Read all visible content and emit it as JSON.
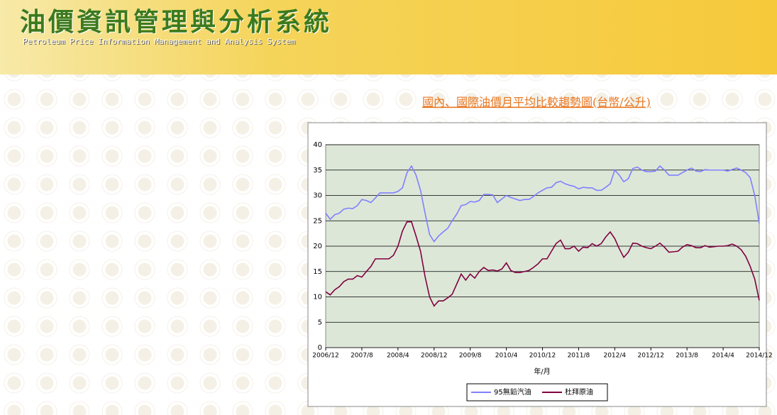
{
  "header": {
    "title": "油價資訊管理與分析系統",
    "subtitle": "Petroleum Price Information Management and Analysis System"
  },
  "chart_data": {
    "type": "line",
    "title": "國內、國際油價月平均比較趨勢圖(台幣/公升)",
    "xlabel": "年/月",
    "categories": [
      "2006/12",
      null,
      null,
      null,
      null,
      null,
      null,
      null,
      "2007/8",
      null,
      null,
      null,
      null,
      null,
      null,
      null,
      "2008/4",
      null,
      null,
      null,
      null,
      null,
      null,
      null,
      "2008/12",
      null,
      null,
      null,
      null,
      null,
      null,
      null,
      "2009/8",
      null,
      null,
      null,
      null,
      null,
      null,
      null,
      "2010/4",
      null,
      null,
      null,
      null,
      null,
      null,
      null,
      "2010/12",
      null,
      null,
      null,
      null,
      null,
      null,
      null,
      "2011/8",
      null,
      null,
      null,
      null,
      null,
      null,
      null,
      "2012/4",
      null,
      null,
      null,
      null,
      null,
      null,
      null,
      "2012/12",
      null,
      null,
      null,
      null,
      null,
      null,
      null,
      "2013/8",
      null,
      null,
      null,
      null,
      null,
      null,
      null,
      "2014/4",
      null,
      null,
      null,
      null,
      null,
      null,
      null,
      "2014/12"
    ],
    "series": [
      {
        "name": "95無鉛汽油",
        "color": "#8080ff",
        "values": [
          26.5,
          25.3,
          26.2,
          26.5,
          27.3,
          27.5,
          27.4,
          28,
          29.2,
          29,
          28.6,
          29.5,
          30.5,
          30.5,
          30.5,
          30.5,
          30.8,
          31.5,
          34.5,
          35.8,
          34,
          31,
          26.5,
          22.3,
          20.9,
          22,
          22.8,
          23.5,
          25,
          26.3,
          28,
          28.2,
          28.8,
          28.7,
          29,
          30.2,
          30.2,
          30.1,
          28.6,
          29.3,
          30,
          29.6,
          29.3,
          29,
          29.2,
          29.2,
          29.8,
          30.5,
          31,
          31.5,
          31.6,
          32.5,
          32.8,
          32.3,
          32,
          31.8,
          31.3,
          31.6,
          31.5,
          31.5,
          31,
          31,
          31.6,
          32.3,
          35,
          34,
          32.7,
          33.3,
          35.3,
          35.6,
          35,
          34.7,
          34.7,
          34.8,
          35.8,
          35,
          34,
          34,
          34,
          34.5,
          35,
          35.4,
          34.8,
          34.7,
          35.1,
          35,
          35,
          35,
          35,
          34.8,
          35.1,
          35.4,
          35,
          34.5,
          33.5,
          30,
          24.5
        ]
      },
      {
        "name": "杜拜原油",
        "color": "#800040",
        "values": [
          11,
          10.4,
          11.4,
          12,
          13,
          13.5,
          13.5,
          14.2,
          13.9,
          15,
          16,
          17.5,
          17.5,
          17.5,
          17.5,
          18.2,
          20,
          23,
          24.8,
          24.8,
          22,
          19,
          14,
          10,
          8.2,
          9.2,
          9.2,
          9.8,
          10.5,
          12.5,
          14.5,
          13.3,
          14.5,
          13.7,
          15,
          15.8,
          15.2,
          15.3,
          15.1,
          15.5,
          16.7,
          15.2,
          14.8,
          14.8,
          15,
          15.2,
          15.8,
          16.5,
          17.5,
          17.5,
          19,
          20.5,
          21.2,
          19.5,
          19.5,
          20,
          19,
          19.8,
          19.7,
          20.5,
          20,
          20.5,
          21.8,
          22.8,
          21.5,
          19.5,
          17.8,
          18.8,
          20.6,
          20.5,
          20,
          19.7,
          19.5,
          20,
          20.6,
          19.8,
          18.8,
          18.9,
          19,
          19.8,
          20.3,
          20.1,
          19.7,
          19.7,
          20.1,
          19.8,
          19.9,
          20,
          20,
          20.1,
          20.4,
          20,
          19.3,
          18,
          16,
          13.5,
          9.3
        ]
      }
    ],
    "ylim": [
      0,
      40
    ],
    "yticks": [
      0,
      5,
      10,
      15,
      20,
      25,
      30,
      35,
      40
    ],
    "grid": true,
    "legend": "bottom"
  }
}
